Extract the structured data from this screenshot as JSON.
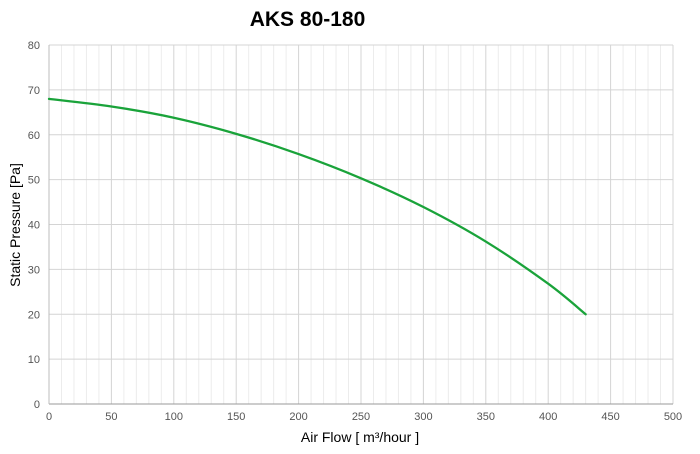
{
  "chart_data": {
    "type": "line",
    "title": "AKS 80-180",
    "xlabel": "Air Flow [ m³/hour ]",
    "ylabel": "Static Pressure [Pa]",
    "xlim": [
      0,
      500
    ],
    "ylim": [
      0,
      80
    ],
    "xticks": [
      "0",
      "50",
      "100",
      "150",
      "200",
      "250",
      "300",
      "350",
      "400",
      "450",
      "500"
    ],
    "yticks": [
      "0",
      "10",
      "20",
      "30",
      "40",
      "50",
      "60",
      "70",
      "80"
    ],
    "grid": true,
    "legend": "none",
    "series": [
      {
        "color": "#1aa33a",
        "x": [
          0,
          50,
          100,
          150,
          200,
          250,
          300,
          350,
          400,
          430
        ],
        "y": [
          68,
          66.3,
          63.8,
          60.2,
          55.7,
          50.3,
          43.9,
          36.2,
          26.8,
          20
        ]
      }
    ]
  }
}
